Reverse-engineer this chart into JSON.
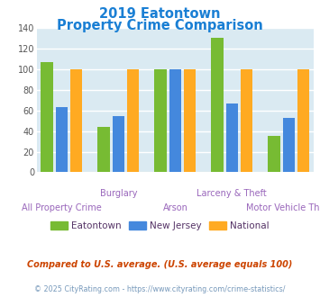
{
  "title_line1": "2019 Eatontown",
  "title_line2": "Property Crime Comparison",
  "title_color": "#1a7fd4",
  "categories": [
    "All Property Crime",
    "Burglary",
    "Arson",
    "Larceny & Theft",
    "Motor Vehicle Theft"
  ],
  "eatontown": [
    107,
    44,
    100,
    131,
    35
  ],
  "new_jersey": [
    63,
    55,
    100,
    67,
    53
  ],
  "national": [
    100,
    100,
    100,
    100,
    100
  ],
  "eatontown_color": "#77bb33",
  "new_jersey_color": "#4488dd",
  "national_color": "#ffaa22",
  "ylim": [
    0,
    140
  ],
  "yticks": [
    0,
    20,
    40,
    60,
    80,
    100,
    120,
    140
  ],
  "plot_bg_color": "#daeaf2",
  "grid_color": "#ffffff",
  "legend_labels": [
    "Eatontown",
    "New Jersey",
    "National"
  ],
  "legend_text_color": "#553366",
  "footnote1": "Compared to U.S. average. (U.S. average equals 100)",
  "footnote2": "© 2025 CityRating.com - https://www.cityrating.com/crime-statistics/",
  "footnote1_color": "#cc4400",
  "footnote2_color": "#7799bb",
  "xlabel_color": "#9966bb"
}
